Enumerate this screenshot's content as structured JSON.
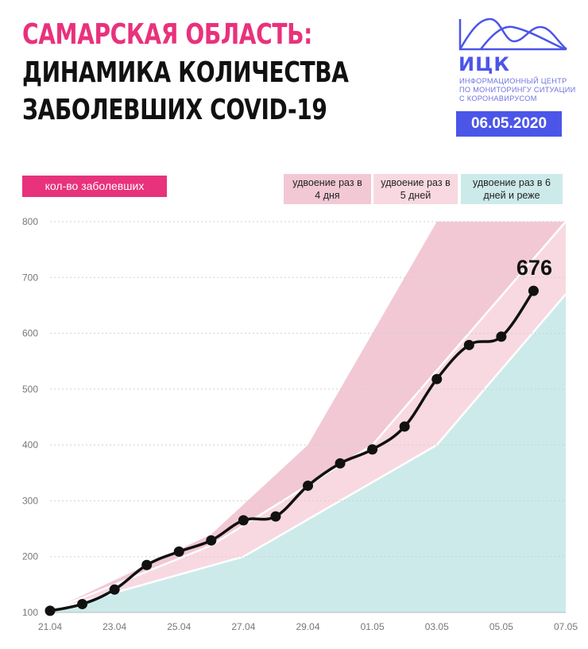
{
  "header": {
    "title_line1": "САМАРСКАЯ ОБЛАСТЬ:",
    "title_line2": "ДИНАМИКА КОЛИЧЕСТВА",
    "title_line3": "ЗАБОЛЕВШИХ COVID-19"
  },
  "logo": {
    "name": "ИЦК",
    "subtitle_line1": "ИНФОРМАЦИОННЫЙ ЦЕНТР",
    "subtitle_line2": "ПО МОНИТОРИНГУ СИТУАЦИИ",
    "subtitle_line3": "С КОРОНАВИРУСОМ",
    "date": "06.05.2020",
    "color": "#4b55e8"
  },
  "legend": {
    "main": "кол-во заболевших",
    "band_4_days": "удвоение раз в 4 дня",
    "band_5_days": "удвоение раз в 5 дней",
    "band_6_days": "удвоение раз в 6 дней и реже"
  },
  "colors": {
    "accent": "#e8327c",
    "band_4": "#f2c8d5",
    "band_5": "#f8d9e1",
    "band_6": "#cdeaea",
    "line": "#111111"
  },
  "chart_data": {
    "type": "line",
    "ylim": [
      100,
      800
    ],
    "yticks": [
      100,
      200,
      300,
      400,
      500,
      600,
      700,
      800
    ],
    "x_day_range": [
      0,
      16
    ],
    "xtick_labels": [
      "21.04",
      "23.04",
      "25.04",
      "27.04",
      "29.04",
      "01.05",
      "03.05",
      "05.05",
      "07.05"
    ],
    "xtick_days": [
      0,
      2,
      4,
      6,
      8,
      10,
      12,
      14,
      16
    ],
    "series": [
      {
        "name": "кол-во заболевших",
        "x": [
          0,
          1,
          2,
          3,
          4,
          5,
          6,
          7,
          8,
          9,
          10,
          11,
          12,
          13,
          14,
          15
        ],
        "values": [
          103,
          115,
          141,
          185,
          209,
          229,
          265,
          272,
          327,
          367,
          392,
          433,
          518,
          579,
          594,
          676
        ]
      }
    ],
    "last_value_label": "676",
    "bands": {
      "top_4_days": [
        [
          0,
          103
        ],
        [
          5,
          240
        ],
        [
          8,
          400
        ],
        [
          12,
          800
        ],
        [
          13.6,
          800
        ]
      ],
      "top_5_days": [
        [
          0,
          103
        ],
        [
          5,
          220
        ],
        [
          10,
          400
        ],
        [
          16,
          800
        ]
      ],
      "top_6_days": [
        [
          0,
          103
        ],
        [
          6,
          200
        ],
        [
          12,
          400
        ],
        [
          16,
          670
        ]
      ]
    }
  }
}
